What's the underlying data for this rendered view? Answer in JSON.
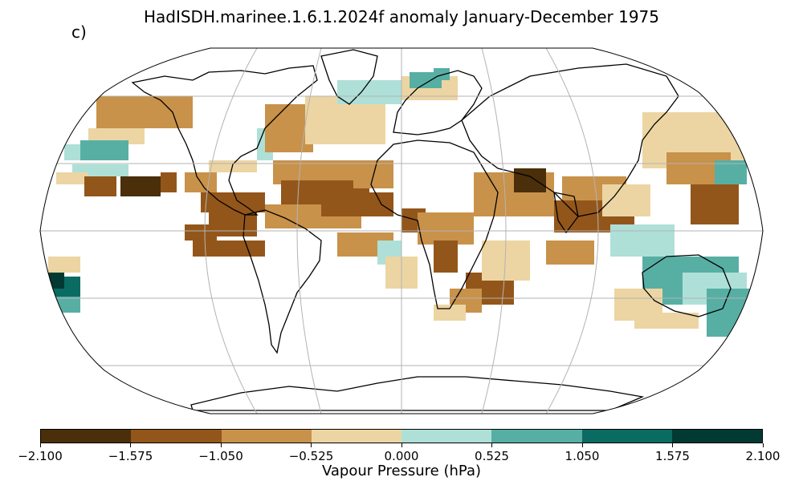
{
  "title": "HadISDH.marinee.1.6.1.2024f anomaly January-December 1975",
  "panel_label": "c)",
  "colorbar": {
    "label": "Vapour Pressure (hPa)",
    "ticks": [
      "−2.100",
      "−1.575",
      "−1.050",
      "−0.525",
      "0.000",
      "0.525",
      "1.050",
      "1.575",
      "2.100"
    ],
    "colors": [
      "#4a2f0a",
      "#93561a",
      "#c8924a",
      "#ecd5a3",
      "#aee0d8",
      "#57afa4",
      "#0a6b62",
      "#003a33"
    ]
  },
  "map": {
    "projection": "Robinson",
    "gridlines": true,
    "landmasses": [
      "north-america",
      "south-america",
      "greenland",
      "europe",
      "africa",
      "asia",
      "india",
      "australia",
      "antarctica"
    ]
  }
}
